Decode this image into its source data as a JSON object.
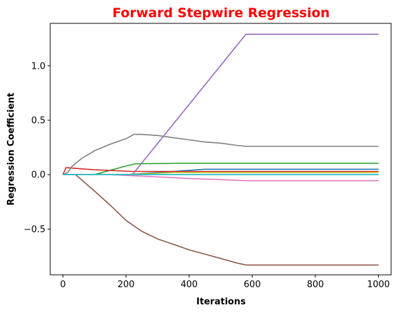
{
  "chart_data": {
    "type": "line",
    "title": "Forward Stepwire Regression",
    "xlabel": "Iterations",
    "ylabel": "Regression Coefficient",
    "xlim": [
      -40,
      1040
    ],
    "ylim": [
      -0.92,
      1.39
    ],
    "x_ticks": [
      0,
      200,
      400,
      600,
      800,
      1000
    ],
    "x_tick_labels": [
      "0",
      "200",
      "400",
      "600",
      "800",
      "1000"
    ],
    "y_ticks": [
      -0.5,
      0.0,
      0.5,
      1.0
    ],
    "y_tick_labels": [
      "−0.5",
      "0.0",
      "0.5",
      "1.0"
    ],
    "grid": false,
    "legend": "none",
    "series": [
      {
        "color": "#1f77b4",
        "x": [
          0,
          200,
          350,
          450,
          1000
        ],
        "y": [
          0,
          0,
          0.03,
          0.05,
          0.05
        ]
      },
      {
        "color": "#ff7f0e",
        "x": [
          0,
          1000
        ],
        "y": [
          0,
          0
        ]
      },
      {
        "color": "#2ca02c",
        "x": [
          0,
          100,
          200,
          230,
          360,
          1000
        ],
        "y": [
          0,
          0,
          0.08,
          0.1,
          0.105,
          0.105
        ]
      },
      {
        "color": "#d62728",
        "x": [
          0,
          10,
          30,
          100,
          220,
          1000
        ],
        "y": [
          0,
          0.065,
          0.06,
          0.045,
          0.03,
          0.03
        ]
      },
      {
        "color": "#9467bd",
        "x": [
          0,
          220,
          580,
          1000
        ],
        "y": [
          0,
          0,
          1.29,
          1.29
        ]
      },
      {
        "color": "#8c564b",
        "x": [
          0,
          40,
          100,
          150,
          200,
          250,
          300,
          350,
          400,
          450,
          500,
          550,
          580,
          1000
        ],
        "y": [
          0,
          0,
          -0.15,
          -0.28,
          -0.42,
          -0.52,
          -0.59,
          -0.64,
          -0.69,
          -0.73,
          -0.77,
          -0.81,
          -0.83,
          -0.83
        ]
      },
      {
        "color": "#e377c2",
        "x": [
          0,
          150,
          300,
          400,
          500,
          580,
          1000
        ],
        "y": [
          0,
          0,
          -0.02,
          -0.035,
          -0.045,
          -0.055,
          -0.055
        ]
      },
      {
        "color": "#7f7f7f",
        "x": [
          0,
          15,
          30,
          60,
          100,
          150,
          200,
          225,
          250,
          300,
          350,
          400,
          450,
          500,
          550,
          580,
          1000
        ],
        "y": [
          0,
          0.02,
          0.08,
          0.15,
          0.22,
          0.28,
          0.33,
          0.37,
          0.37,
          0.36,
          0.34,
          0.32,
          0.3,
          0.29,
          0.27,
          0.26,
          0.26
        ]
      },
      {
        "color": "#bcbd22",
        "x": [
          0,
          200,
          350,
          1000
        ],
        "y": [
          0,
          0,
          0.02,
          0.02
        ]
      },
      {
        "color": "#17becf",
        "x": [
          0,
          1000
        ],
        "y": [
          0,
          0
        ]
      }
    ]
  }
}
